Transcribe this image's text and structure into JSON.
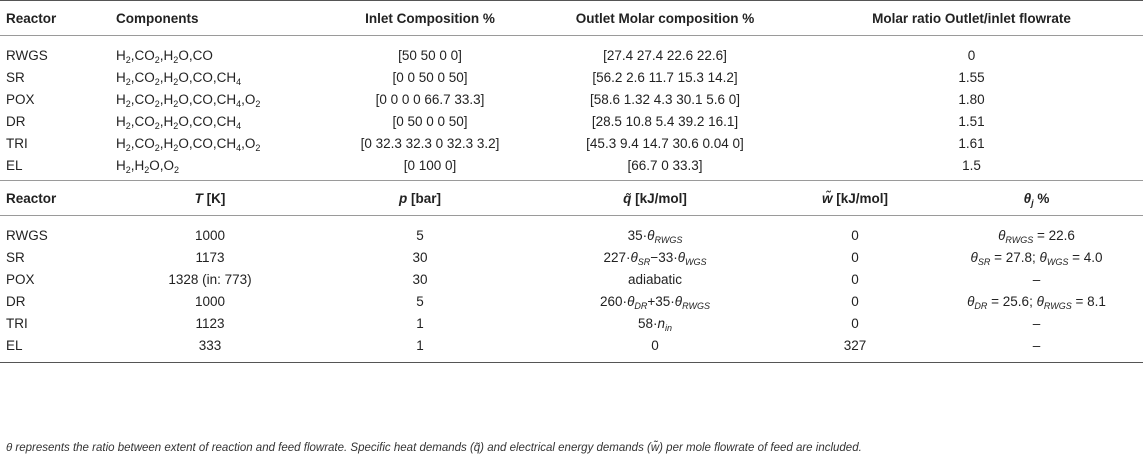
{
  "table1": {
    "headers": [
      "Reactor",
      "Components",
      "Inlet Composition %",
      "Outlet Molar composition %",
      "Molar ratio Outlet/inlet flowrate"
    ],
    "rows": [
      {
        "reactor": "RWGS",
        "inlet": "[50 50 0 0]",
        "outlet": "[27.4 27.4 22.6 22.6]",
        "ratio": "0"
      },
      {
        "reactor": "SR",
        "inlet": "[0 0 50 0 50]",
        "outlet": "[56.2 2.6 11.7 15.3 14.2]",
        "ratio": "1.55"
      },
      {
        "reactor": "POX",
        "inlet": "[0 0 0 0 66.7 33.3]",
        "outlet": "[58.6 1.32 4.3 30.1 5.6 0]",
        "ratio": "1.80"
      },
      {
        "reactor": "DR",
        "inlet": "[0 50 0 0 50]",
        "outlet": "[28.5 10.8 5.4 39.2 16.1]",
        "ratio": "1.51"
      },
      {
        "reactor": "TRI",
        "inlet": "[0 32.3 32.3 0 32.3 3.2]",
        "outlet": "[45.3 9.4 14.7 30.6 0.04 0]",
        "ratio": "1.61"
      },
      {
        "reactor": "EL",
        "inlet": "[0 100 0]",
        "outlet": "[66.7 0 33.3]",
        "ratio": "1.5"
      }
    ]
  },
  "table2": {
    "headers": {
      "reactor": "Reactor",
      "T_sym": "T",
      "T_unit": " [K]",
      "p_sym": "p",
      "p_unit": " [bar]",
      "q_sym": "q̃",
      "q_unit": " [kJ/mol]",
      "w_sym": "w̃",
      "w_unit": " [kJ/mol]",
      "theta_sym": "θ",
      "theta_sub": "j",
      "theta_unit": " %"
    },
    "rows": [
      {
        "reactor": "RWGS",
        "T": "1000",
        "p": "5",
        "w": "0"
      },
      {
        "reactor": "SR",
        "T": "1173",
        "p": "30",
        "w": "0"
      },
      {
        "reactor": "POX",
        "T": "1328 (in: 773)",
        "p": "30",
        "q": "adiabatic",
        "w": "0",
        "theta": "–"
      },
      {
        "reactor": "DR",
        "T": "1000",
        "p": "5",
        "w": "0"
      },
      {
        "reactor": "TRI",
        "T": "1123",
        "p": "1",
        "w": "0",
        "theta": "–"
      },
      {
        "reactor": "EL",
        "T": "333",
        "p": "1",
        "q": "0",
        "w": "327",
        "theta": "–"
      }
    ]
  },
  "footnote": "θ represents the ratio between extent of reaction and feed flowrate. Specific heat demands (q̃) and electrical energy demands (w̃) per mole flowrate of feed are included."
}
